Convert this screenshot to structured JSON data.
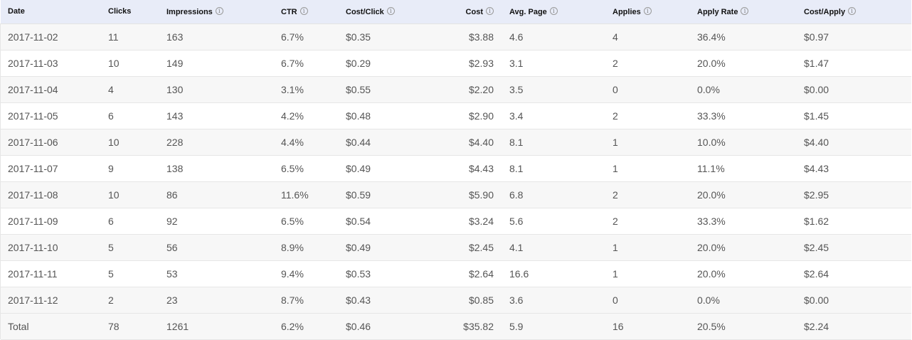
{
  "columns": {
    "date": "Date",
    "clicks": "Clicks",
    "impressions": "Impressions",
    "ctr": "CTR",
    "cost_per_click": "Cost/Click",
    "cost": "Cost",
    "avg_page": "Avg. Page",
    "applies": "Applies",
    "apply_rate": "Apply Rate",
    "cost_per_apply": "Cost/Apply",
    "info_glyph": "i"
  },
  "rows": [
    {
      "date": "2017-11-02",
      "clicks": "11",
      "impressions": "163",
      "ctr": "6.7%",
      "cpc": "$0.35",
      "cost": "$3.88",
      "avg_page": "4.6",
      "applies": "4",
      "apply_rate": "36.4%",
      "cpa": "$0.97"
    },
    {
      "date": "2017-11-03",
      "clicks": "10",
      "impressions": "149",
      "ctr": "6.7%",
      "cpc": "$0.29",
      "cost": "$2.93",
      "avg_page": "3.1",
      "applies": "2",
      "apply_rate": "20.0%",
      "cpa": "$1.47"
    },
    {
      "date": "2017-11-04",
      "clicks": "4",
      "impressions": "130",
      "ctr": "3.1%",
      "cpc": "$0.55",
      "cost": "$2.20",
      "avg_page": "3.5",
      "applies": "0",
      "apply_rate": "0.0%",
      "cpa": "$0.00"
    },
    {
      "date": "2017-11-05",
      "clicks": "6",
      "impressions": "143",
      "ctr": "4.2%",
      "cpc": "$0.48",
      "cost": "$2.90",
      "avg_page": "3.4",
      "applies": "2",
      "apply_rate": "33.3%",
      "cpa": "$1.45"
    },
    {
      "date": "2017-11-06",
      "clicks": "10",
      "impressions": "228",
      "ctr": "4.4%",
      "cpc": "$0.44",
      "cost": "$4.40",
      "avg_page": "8.1",
      "applies": "1",
      "apply_rate": "10.0%",
      "cpa": "$4.40"
    },
    {
      "date": "2017-11-07",
      "clicks": "9",
      "impressions": "138",
      "ctr": "6.5%",
      "cpc": "$0.49",
      "cost": "$4.43",
      "avg_page": "8.1",
      "applies": "1",
      "apply_rate": "11.1%",
      "cpa": "$4.43"
    },
    {
      "date": "2017-11-08",
      "clicks": "10",
      "impressions": "86",
      "ctr": "11.6%",
      "cpc": "$0.59",
      "cost": "$5.90",
      "avg_page": "6.8",
      "applies": "2",
      "apply_rate": "20.0%",
      "cpa": "$2.95"
    },
    {
      "date": "2017-11-09",
      "clicks": "6",
      "impressions": "92",
      "ctr": "6.5%",
      "cpc": "$0.54",
      "cost": "$3.24",
      "avg_page": "5.6",
      "applies": "2",
      "apply_rate": "33.3%",
      "cpa": "$1.62"
    },
    {
      "date": "2017-11-10",
      "clicks": "5",
      "impressions": "56",
      "ctr": "8.9%",
      "cpc": "$0.49",
      "cost": "$2.45",
      "avg_page": "4.1",
      "applies": "1",
      "apply_rate": "20.0%",
      "cpa": "$2.45"
    },
    {
      "date": "2017-11-11",
      "clicks": "5",
      "impressions": "53",
      "ctr": "9.4%",
      "cpc": "$0.53",
      "cost": "$2.64",
      "avg_page": "16.6",
      "applies": "1",
      "apply_rate": "20.0%",
      "cpa": "$2.64"
    },
    {
      "date": "2017-11-12",
      "clicks": "2",
      "impressions": "23",
      "ctr": "8.7%",
      "cpc": "$0.43",
      "cost": "$0.85",
      "avg_page": "3.6",
      "applies": "0",
      "apply_rate": "0.0%",
      "cpa": "$0.00"
    }
  ],
  "total": {
    "date": "Total",
    "clicks": "78",
    "impressions": "1261",
    "ctr": "6.2%",
    "cpc": "$0.46",
    "cost": "$35.82",
    "avg_page": "5.9",
    "applies": "16",
    "apply_rate": "20.5%",
    "cpa": "$2.24"
  },
  "colors": {
    "header_bg": "#e8ecf8",
    "row_stripe": "#f7f7f7",
    "text": "#555555",
    "header_text": "#111111"
  }
}
